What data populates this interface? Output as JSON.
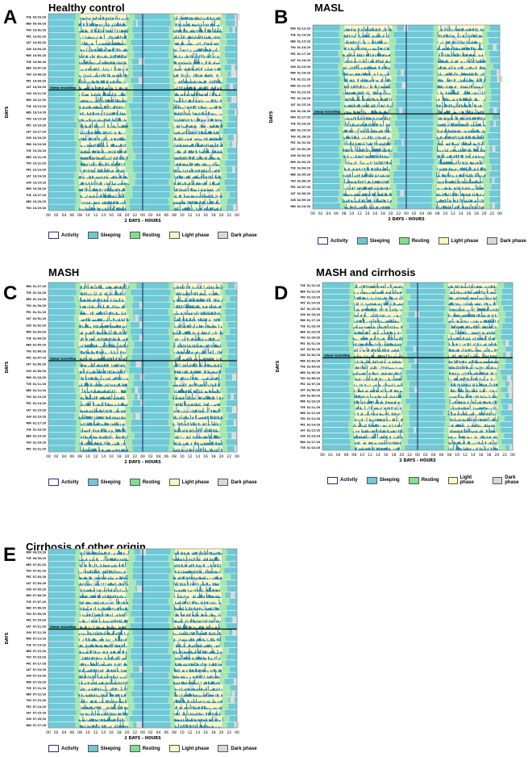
{
  "chart_data": [
    {
      "type": "actogram",
      "letter": "A",
      "title": "Healthy control",
      "ylabel": "DAYS",
      "xlabel": "2 DAYS - HOURS",
      "xticks": [
        "00",
        "02",
        "04",
        "06",
        "08",
        "10",
        "12",
        "14",
        "16",
        "18",
        "20",
        "22",
        "00",
        "02",
        "04",
        "06",
        "08",
        "10",
        "12",
        "14",
        "16",
        "18",
        "20",
        "22",
        "00"
      ],
      "light_start_h": 8,
      "light_end_h": 20,
      "sleep_recording_after_row": 12,
      "sleep_recording_label": "Sleep recording",
      "days": [
        "TUE 09/29/20",
        "WED 09/30/20",
        "THU 10/01/20",
        "FRI 10/02/20",
        "SAT 10/03/20",
        "SUN 10/04/20",
        "MON 10/05/20",
        "TUE 10/06/20",
        "WED 10/07/20",
        "THU 10/08/20",
        "FRI 10/09/20",
        "SAT 10/10/20",
        "SUN 10/11/20",
        "MON 10/12/20",
        "TUE 10/13/20",
        "WED 10/14/20",
        "THU 10/15/20",
        "FRI 10/16/20",
        "SAT 10/17/20",
        "SUN 10/18/20",
        "MON 10/19/20",
        "TUE 10/20/20",
        "WED 10/21/20",
        "THU 10/22/20",
        "FRI 10/23/20",
        "SAT 10/24/20",
        "SUN 10/25/20",
        "MON 10/26/20",
        "TUE 10/27/20",
        "WED 10/28/20",
        "THU 10/29/20"
      ]
    },
    {
      "type": "actogram",
      "letter": "B",
      "title": "MASL",
      "ylabel": "DAYS",
      "xlabel": "2 DAYS - HOURS",
      "xticks": [
        "00",
        "02",
        "04",
        "06",
        "08",
        "10",
        "12",
        "14",
        "16",
        "18",
        "20",
        "22",
        "00",
        "02",
        "04",
        "06",
        "08",
        "10",
        "12",
        "14",
        "16",
        "18",
        "20",
        "22",
        "00"
      ],
      "light_start_h": 8,
      "light_end_h": 20,
      "sleep_recording_after_row": 14,
      "sleep_recording_label": "Sleep recording",
      "days": [
        "MON 01/13/20",
        "TUE 01/14/20",
        "WED 01/15/20",
        "THU 01/16/20",
        "FRI 01/17/20",
        "SAT 01/18/20",
        "SUN 01/19/20",
        "MON 01/20/20",
        "TUE 01/21/20",
        "WED 01/22/20",
        "THU 01/23/20",
        "FRI 01/24/20",
        "SAT 01/25/20",
        "SUN 01/26/20",
        "MON 01/27/20",
        "TUE 01/28/20",
        "WED 01/29/20",
        "THU 01/30/20",
        "FRI 01/31/20",
        "SAT 02/01/20",
        "SUN 02/02/20",
        "MON 02/03/20",
        "TUE 02/04/20",
        "WED 02/05/20",
        "THU 02/06/20",
        "FRI 02/07/20",
        "SAT 02/08/20",
        "SUN 02/09/20",
        "MON 02/10/20"
      ]
    },
    {
      "type": "actogram",
      "letter": "C",
      "title": "MASH",
      "ylabel": "DAYS",
      "xlabel": "2 DAYS - HOURS",
      "xticks": [
        "00",
        "02",
        "04",
        "06",
        "08",
        "10",
        "12",
        "14",
        "16",
        "18",
        "20",
        "22",
        "00",
        "02",
        "04",
        "06",
        "08",
        "10",
        "12",
        "14",
        "16",
        "18",
        "20",
        "22",
        "00"
      ],
      "light_start_h": 8,
      "light_end_h": 20,
      "sleep_recording_after_row": 12,
      "sleep_recording_label": "Sleep recording",
      "days": [
        "MON 01/27/20",
        "TUE 01/28/20",
        "WED 01/29/20",
        "THU 01/30/20",
        "FRI 01/31/20",
        "SAT 02/01/20",
        "SUN 02/02/20",
        "MON 02/03/20",
        "TUE 02/04/20",
        "WED 02/05/20",
        "THU 02/06/20",
        "FRI 02/07/20",
        "SAT 02/08/20",
        "SUN 02/09/20",
        "MON 02/10/20",
        "TUE 02/11/20",
        "WED 02/12/20",
        "THU 02/13/20",
        "FRI 02/14/20",
        "SAT 02/15/20",
        "SUN 02/16/20",
        "MON 02/17/20",
        "TUE 02/18/20",
        "WED 02/19/20",
        "THU 02/20/20",
        "FRI 02/21/20"
      ]
    },
    {
      "type": "actogram",
      "letter": "D",
      "title": "MASH and cirrhosis",
      "ylabel": "DAYS",
      "xlabel": "2 DAYS - HOURS",
      "xticks": [
        "00",
        "02",
        "04",
        "06",
        "08",
        "10",
        "12",
        "14",
        "16",
        "18",
        "20",
        "22",
        "00",
        "02",
        "04",
        "06",
        "08",
        "10",
        "12",
        "14",
        "16",
        "18",
        "20",
        "22",
        "00"
      ],
      "light_start_h": 8,
      "light_end_h": 20,
      "sleep_recording_after_row": 13,
      "sleep_recording_label": "Sleep recording",
      "days": [
        "TUE 01/21/20",
        "WED 01/22/20",
        "THU 01/23/20",
        "FRI 01/24/20",
        "SAT 01/25/20",
        "SUN 01/26/20",
        "MON 01/27/20",
        "TUE 01/28/20",
        "WED 01/29/20",
        "THU 01/30/20",
        "FRI 01/31/20",
        "SAT 02/01/20",
        "SUN 02/02/20",
        "MON 02/03/20",
        "TUE 02/04/20",
        "WED 02/05/20",
        "THU 02/06/20",
        "FRI 02/07/20",
        "SAT 02/08/20",
        "SUN 02/09/20",
        "MON 02/10/20",
        "TUE 02/11/20",
        "WED 02/12/20",
        "THU 02/13/20",
        "FRI 02/14/20",
        "SAT 02/15/20",
        "SUN 02/16/20",
        "MON 02/17/20",
        "TUE 02/18/20"
      ]
    },
    {
      "type": "actogram",
      "letter": "E",
      "title": "Cirrhosis of other origin",
      "ylabel": "DAYS",
      "xlabel": "2 DAYS - HOURS",
      "xticks": [
        "00",
        "02",
        "04",
        "06",
        "08",
        "10",
        "12",
        "14",
        "16",
        "18",
        "20",
        "22",
        "00",
        "02",
        "04",
        "06",
        "08",
        "10",
        "12",
        "14",
        "16",
        "18",
        "20",
        "22",
        "00"
      ],
      "light_start_h": 8,
      "light_end_h": 20,
      "sleep_recording_after_row": 13,
      "sleep_recording_label": "Sleep recording",
      "days": [
        "MON 06/29/20",
        "TUE 06/30/20",
        "WED 07/01/20",
        "THU 07/02/20",
        "FRI 07/03/20",
        "SAT 07/04/20",
        "SUN 07/05/20",
        "MON 07/06/20",
        "TUE 07/07/20",
        "WED 07/08/20",
        "THU 07/09/20",
        "FRI 07/10/20",
        "SAT 07/11/20",
        "SUN 07/12/20",
        "MON 07/13/20",
        "TUE 07/14/20",
        "WED 07/15/20",
        "THU 07/16/20",
        "FRI 07/17/20",
        "SAT 07/18/20",
        "SUN 07/19/20",
        "MON 07/20/20",
        "TUE 07/21/20",
        "WED 07/22/20",
        "THU 07/23/20",
        "FRI 07/24/20",
        "SAT 07/25/20",
        "SUN 07/26/20",
        "MON 07/27/20"
      ]
    }
  ],
  "legend": {
    "items": [
      {
        "label": "Activity",
        "color": "#ffffff",
        "border": "#2b2b8c"
      },
      {
        "label": "Sleeping",
        "color": "#6ec9d6",
        "border": "#555555"
      },
      {
        "label": "Resting",
        "color": "#7ee08a",
        "border": "#555555"
      },
      {
        "label": "Light phase",
        "color": "#fbf6c0",
        "border": "#555555"
      },
      {
        "label": "Dark phase",
        "color": "#d8d8d8",
        "border": "#555555"
      }
    ]
  },
  "colors": {
    "sleep": "#6ec9d6",
    "rest": "#a6e6b0",
    "light": "#fbf6c8",
    "dark": "#dcdcdc",
    "activity": "#1f84b4"
  }
}
